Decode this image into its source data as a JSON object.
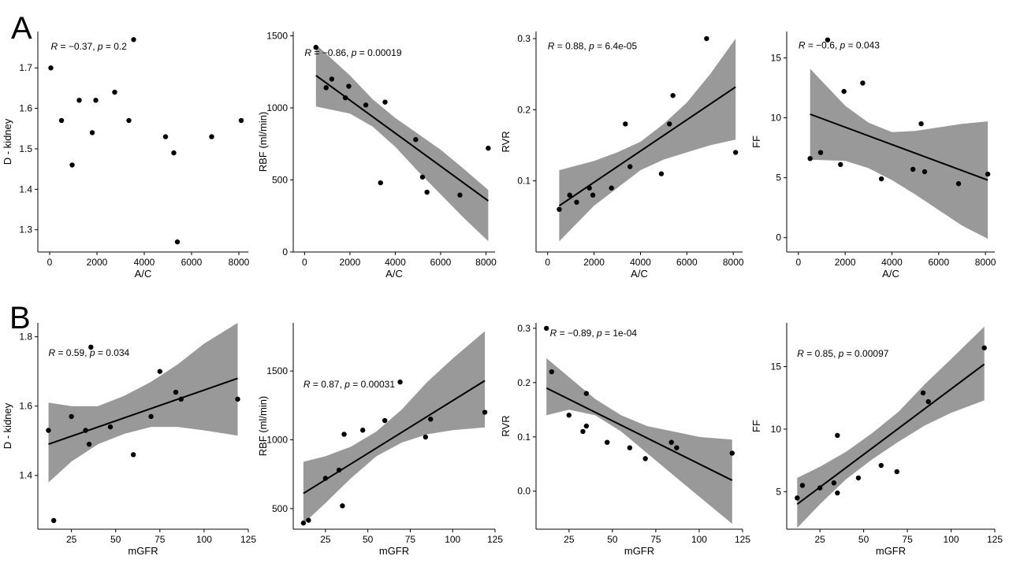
{
  "figure": {
    "panel_labels": [
      "A",
      "B"
    ],
    "colors": {
      "band": "#999999",
      "line": "#000000",
      "point": "#000000",
      "axis": "#000000"
    }
  },
  "chart_data": [
    {
      "id": "a1",
      "row": 0,
      "col": 0,
      "type": "scatter",
      "xlabel": "A/C",
      "ylabel": "D - kidney",
      "xlim": [
        -500,
        8400
      ],
      "ylim": [
        1.245,
        1.79
      ],
      "xticks": [
        0,
        2000,
        4000,
        6000,
        8000
      ],
      "xtick_labels": [
        "0",
        "2000",
        "4000",
        "6000",
        "8000"
      ],
      "yticks": [
        1.3,
        1.4,
        1.5,
        1.6,
        1.7
      ],
      "ytick_labels": [
        "1.3",
        "1.4",
        "1.5",
        "1.6",
        "1.7"
      ],
      "points": [
        [
          50,
          1.7
        ],
        [
          500,
          1.57
        ],
        [
          950,
          1.46
        ],
        [
          1250,
          1.62
        ],
        [
          1800,
          1.54
        ],
        [
          1950,
          1.62
        ],
        [
          2750,
          1.64
        ],
        [
          3350,
          1.57
        ],
        [
          3550,
          1.77
        ],
        [
          4900,
          1.53
        ],
        [
          5250,
          1.49
        ],
        [
          5400,
          1.27
        ],
        [
          6850,
          1.53
        ],
        [
          8100,
          1.57
        ]
      ],
      "fit": null,
      "band": null,
      "annotation": {
        "r": "−0.37",
        "p": "0.2",
        "x": 50,
        "y": 1.745
      }
    },
    {
      "id": "a2",
      "row": 0,
      "col": 1,
      "type": "scatter",
      "xlabel": "A/C",
      "ylabel": "RBF (ml/min)",
      "xlim": [
        -500,
        8400
      ],
      "ylim": [
        0,
        1530
      ],
      "xticks": [
        0,
        2000,
        4000,
        6000,
        8000
      ],
      "xtick_labels": [
        "0",
        "2000",
        "4000",
        "6000",
        "8000"
      ],
      "yticks": [
        0,
        500,
        1000,
        1500
      ],
      "ytick_labels": [
        "0",
        "500",
        "1000",
        "1500"
      ],
      "points": [
        [
          500,
          1420
        ],
        [
          950,
          1140
        ],
        [
          1200,
          1200
        ],
        [
          1800,
          1070
        ],
        [
          1950,
          1150
        ],
        [
          2700,
          1020
        ],
        [
          3350,
          480
        ],
        [
          3550,
          1040
        ],
        [
          4900,
          780
        ],
        [
          5200,
          520
        ],
        [
          5400,
          415
        ],
        [
          6850,
          395
        ],
        [
          8100,
          720
        ]
      ],
      "fit": [
        [
          500,
          1225
        ],
        [
          8100,
          355
        ]
      ],
      "band": {
        "x": [
          500,
          2000,
          3000,
          4000,
          5000,
          6000,
          7000,
          8100
        ],
        "lo": [
          1010,
          960,
          870,
          730,
          560,
          400,
          240,
          75
        ],
        "hi": [
          1440,
          1225,
          1060,
          930,
          820,
          710,
          580,
          430
        ]
      },
      "annotation": {
        "r": "−0.86",
        "p": "0.00019",
        "x": 0,
        "y": 1360
      }
    },
    {
      "id": "a3",
      "row": 0,
      "col": 2,
      "type": "scatter",
      "xlabel": "A/C",
      "ylabel": "RVR",
      "xlim": [
        -500,
        8400
      ],
      "ylim": [
        0,
        0.31
      ],
      "xticks": [
        0,
        2000,
        4000,
        6000,
        8000
      ],
      "xtick_labels": [
        "0",
        "2000",
        "4000",
        "6000",
        "8000"
      ],
      "yticks": [
        0.1,
        0.2,
        0.3
      ],
      "ytick_labels": [
        "0.1",
        "0.2",
        "0.3"
      ],
      "points": [
        [
          500,
          0.06
        ],
        [
          950,
          0.08
        ],
        [
          1250,
          0.07
        ],
        [
          1800,
          0.09
        ],
        [
          1950,
          0.08
        ],
        [
          2750,
          0.09
        ],
        [
          3350,
          0.18
        ],
        [
          3550,
          0.12
        ],
        [
          4900,
          0.11
        ],
        [
          5250,
          0.18
        ],
        [
          5400,
          0.22
        ],
        [
          6850,
          0.3
        ],
        [
          8100,
          0.14
        ]
      ],
      "fit": [
        [
          500,
          0.065
        ],
        [
          8100,
          0.232
        ]
      ],
      "band": {
        "x": [
          500,
          2000,
          3000,
          4000,
          5000,
          6000,
          7000,
          8100
        ],
        "lo": [
          0.015,
          0.065,
          0.09,
          0.115,
          0.13,
          0.14,
          0.15,
          0.158
        ],
        "hi": [
          0.115,
          0.128,
          0.14,
          0.155,
          0.18,
          0.21,
          0.25,
          0.3
        ]
      },
      "annotation": {
        "r": "0.88",
        "p": "6.4e-05",
        "x": 0,
        "y": 0.285
      }
    },
    {
      "id": "a4",
      "row": 0,
      "col": 3,
      "type": "scatter",
      "xlabel": "A/C",
      "ylabel": "FF",
      "xlim": [
        -500,
        8400
      ],
      "ylim": [
        -1.2,
        17.2
      ],
      "xticks": [
        0,
        2000,
        4000,
        6000,
        8000
      ],
      "xtick_labels": [
        "0",
        "2000",
        "4000",
        "6000",
        "8000"
      ],
      "yticks": [
        0,
        5,
        10,
        15
      ],
      "ytick_labels": [
        "0",
        "5",
        "10",
        "15"
      ],
      "points": [
        [
          500,
          6.6
        ],
        [
          950,
          7.1
        ],
        [
          1250,
          16.5
        ],
        [
          1800,
          6.1
        ],
        [
          1950,
          12.2
        ],
        [
          2750,
          12.9
        ],
        [
          3550,
          4.9
        ],
        [
          4900,
          5.7
        ],
        [
          5250,
          9.5
        ],
        [
          5400,
          5.5
        ],
        [
          6850,
          4.5
        ],
        [
          8100,
          5.3
        ]
      ],
      "fit": [
        [
          500,
          10.3
        ],
        [
          8100,
          4.8
        ]
      ],
      "band": {
        "x": [
          500,
          2000,
          3000,
          4000,
          5000,
          6000,
          7000,
          8100
        ],
        "lo": [
          6.5,
          6.4,
          5.8,
          4.8,
          3.6,
          2.3,
          1.0,
          -0.1
        ],
        "hi": [
          14.1,
          11.0,
          9.6,
          8.8,
          8.9,
          9.2,
          9.5,
          9.7
        ]
      },
      "annotation": {
        "r": "−0.6",
        "p": "0.043",
        "x": 0,
        "y": 15.8
      }
    },
    {
      "id": "b1",
      "row": 1,
      "col": 0,
      "type": "scatter",
      "xlabel": "mGFR",
      "ylabel": "D - kidney",
      "xlim": [
        6,
        125
      ],
      "ylim": [
        1.245,
        1.84
      ],
      "xticks": [
        25,
        50,
        75,
        100,
        125
      ],
      "xtick_labels": [
        "25",
        "50",
        "75",
        "100",
        "125"
      ],
      "yticks": [
        1.4,
        1.6,
        1.8
      ],
      "ytick_labels": [
        "1.4",
        "1.6",
        "1.8"
      ],
      "points": [
        [
          12,
          1.53
        ],
        [
          15,
          1.27
        ],
        [
          25,
          1.57
        ],
        [
          33,
          1.53
        ],
        [
          35,
          1.49
        ],
        [
          36,
          1.77
        ],
        [
          47,
          1.54
        ],
        [
          60,
          1.46
        ],
        [
          70,
          1.57
        ],
        [
          75,
          1.7
        ],
        [
          84,
          1.64
        ],
        [
          87,
          1.62
        ],
        [
          119,
          1.62
        ]
      ],
      "fit": [
        [
          12,
          1.49
        ],
        [
          119,
          1.68
        ]
      ],
      "band": {
        "x": [
          12,
          25,
          40,
          55,
          70,
          85,
          100,
          119
        ],
        "lo": [
          1.38,
          1.44,
          1.49,
          1.52,
          1.54,
          1.54,
          1.53,
          1.515
        ],
        "hi": [
          1.61,
          1.6,
          1.6,
          1.63,
          1.67,
          1.72,
          1.78,
          1.84
        ]
      },
      "annotation": {
        "r": "0.59",
        "p": "0.034",
        "x": 12,
        "y": 1.745
      }
    },
    {
      "id": "b2",
      "row": 1,
      "col": 1,
      "type": "scatter",
      "xlabel": "mGFR",
      "ylabel": "RBF (ml/min)",
      "xlim": [
        6,
        125
      ],
      "ylim": [
        350,
        1850
      ],
      "xticks": [
        25,
        50,
        75,
        100,
        125
      ],
      "xtick_labels": [
        "25",
        "50",
        "75",
        "100",
        "125"
      ],
      "yticks": [
        500,
        1000,
        1500
      ],
      "ytick_labels": [
        "500",
        "1000",
        "1500"
      ],
      "points": [
        [
          12,
          395
        ],
        [
          15,
          415
        ],
        [
          25,
          720
        ],
        [
          33,
          780
        ],
        [
          35,
          520
        ],
        [
          36,
          1040
        ],
        [
          47,
          1070
        ],
        [
          60,
          1140
        ],
        [
          69,
          1420
        ],
        [
          84,
          1020
        ],
        [
          87,
          1150
        ],
        [
          119,
          1200
        ]
      ],
      "fit": [
        [
          12,
          610
        ],
        [
          119,
          1430
        ]
      ],
      "band": {
        "x": [
          12,
          25,
          40,
          55,
          70,
          85,
          100,
          119
        ],
        "lo": [
          390,
          540,
          720,
          880,
          980,
          1040,
          1070,
          1090
        ],
        "hi": [
          840,
          880,
          950,
          1060,
          1220,
          1420,
          1590,
          1790
        ]
      },
      "annotation": {
        "r": "0.87",
        "p": "0.00031",
        "x": 12,
        "y": 1380
      }
    },
    {
      "id": "b3",
      "row": 1,
      "col": 2,
      "type": "scatter",
      "xlabel": "mGFR",
      "ylabel": "RVR",
      "xlim": [
        6,
        125
      ],
      "ylim": [
        -0.07,
        0.31
      ],
      "xticks": [
        25,
        50,
        75,
        100,
        125
      ],
      "xtick_labels": [
        "25",
        "50",
        "75",
        "100",
        "125"
      ],
      "yticks": [
        0.0,
        0.1,
        0.2,
        0.3
      ],
      "ytick_labels": [
        "0.0",
        "0.1",
        "0.2",
        "0.3"
      ],
      "points": [
        [
          12,
          0.3
        ],
        [
          15,
          0.22
        ],
        [
          25,
          0.14
        ],
        [
          33,
          0.11
        ],
        [
          35,
          0.18
        ],
        [
          35,
          0.12
        ],
        [
          47,
          0.09
        ],
        [
          60,
          0.08
        ],
        [
          69,
          0.06
        ],
        [
          84,
          0.09
        ],
        [
          87,
          0.08
        ],
        [
          119,
          0.07
        ]
      ],
      "fit": [
        [
          12,
          0.19
        ],
        [
          119,
          0.02
        ]
      ],
      "band": {
        "x": [
          12,
          25,
          40,
          55,
          70,
          85,
          100,
          119
        ],
        "lo": [
          0.14,
          0.15,
          0.14,
          0.11,
          0.07,
          0.03,
          -0.01,
          -0.06
        ],
        "hi": [
          0.245,
          0.21,
          0.17,
          0.14,
          0.12,
          0.11,
          0.1,
          0.095
        ]
      },
      "annotation": {
        "r": "−0.89",
        "p": "1e-04",
        "x": 14,
        "y": 0.285
      }
    },
    {
      "id": "b4",
      "row": 1,
      "col": 3,
      "type": "scatter",
      "xlabel": "mGFR",
      "ylabel": "FF",
      "xlim": [
        6,
        125
      ],
      "ylim": [
        2,
        18.5
      ],
      "xticks": [
        25,
        50,
        75,
        100,
        125
      ],
      "xtick_labels": [
        "25",
        "50",
        "75",
        "100",
        "125"
      ],
      "yticks": [
        5,
        10,
        15
      ],
      "ytick_labels": [
        "5",
        "10",
        "15"
      ],
      "points": [
        [
          12,
          4.5
        ],
        [
          15,
          5.5
        ],
        [
          25,
          5.3
        ],
        [
          33,
          5.7
        ],
        [
          35,
          9.5
        ],
        [
          35,
          4.9
        ],
        [
          47,
          6.1
        ],
        [
          60,
          7.1
        ],
        [
          69,
          6.6
        ],
        [
          84,
          12.9
        ],
        [
          87,
          12.2
        ],
        [
          119,
          16.5
        ]
      ],
      "fit": [
        [
          12,
          4.0
        ],
        [
          119,
          15.2
        ]
      ],
      "band": {
        "x": [
          12,
          25,
          40,
          55,
          70,
          85,
          100,
          119
        ],
        "lo": [
          2.1,
          4.0,
          6.0,
          7.6,
          9.0,
          10.3,
          11.3,
          12.3
        ],
        "hi": [
          6.1,
          7.0,
          8.2,
          9.7,
          11.4,
          13.6,
          15.6,
          18.2
        ]
      },
      "annotation": {
        "r": "0.85",
        "p": "0.00097",
        "x": 12,
        "y": 15.8
      }
    }
  ]
}
